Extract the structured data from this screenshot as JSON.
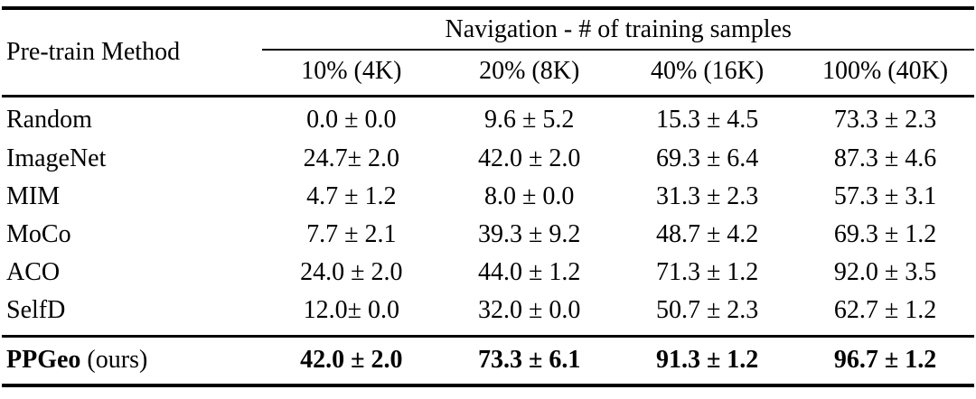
{
  "table": {
    "header": {
      "method_column": "Pre-train Method",
      "group": "Navigation - # of training samples",
      "columns": [
        "10% (4K)",
        "20% (8K)",
        "40% (16K)",
        "100% (40K)"
      ]
    },
    "rows": [
      {
        "method": "Random",
        "values": [
          "0.0 ± 0.0",
          "9.6 ± 5.2",
          "15.3 ± 4.5",
          "73.3 ± 2.3"
        ]
      },
      {
        "method": "ImageNet",
        "values": [
          "24.7± 2.0",
          "42.0 ± 2.0",
          "69.3 ± 6.4",
          "87.3 ± 4.6"
        ]
      },
      {
        "method": "MIM",
        "values": [
          "4.7 ± 1.2",
          "8.0 ± 0.0",
          "31.3 ± 2.3",
          "57.3 ± 3.1"
        ]
      },
      {
        "method": "MoCo",
        "values": [
          "7.7 ± 2.1",
          "39.3 ± 9.2",
          "48.7 ± 4.2",
          "69.3 ± 1.2"
        ]
      },
      {
        "method": "ACO",
        "values": [
          "24.0 ± 2.0",
          "44.0 ± 1.2",
          "71.3 ± 1.2",
          "92.0 ± 3.5"
        ]
      },
      {
        "method": "SelfD",
        "values": [
          "12.0± 0.0",
          "32.0 ± 0.0",
          "50.7 ± 2.3",
          "62.7 ± 1.2"
        ]
      }
    ],
    "highlight_row": {
      "method_name": "PPGeo",
      "method_suffix": " (ours)",
      "values": [
        "42.0 ± 2.0",
        "73.3 ± 6.1",
        "91.3 ± 1.2",
        "96.7 ± 1.2"
      ]
    }
  }
}
